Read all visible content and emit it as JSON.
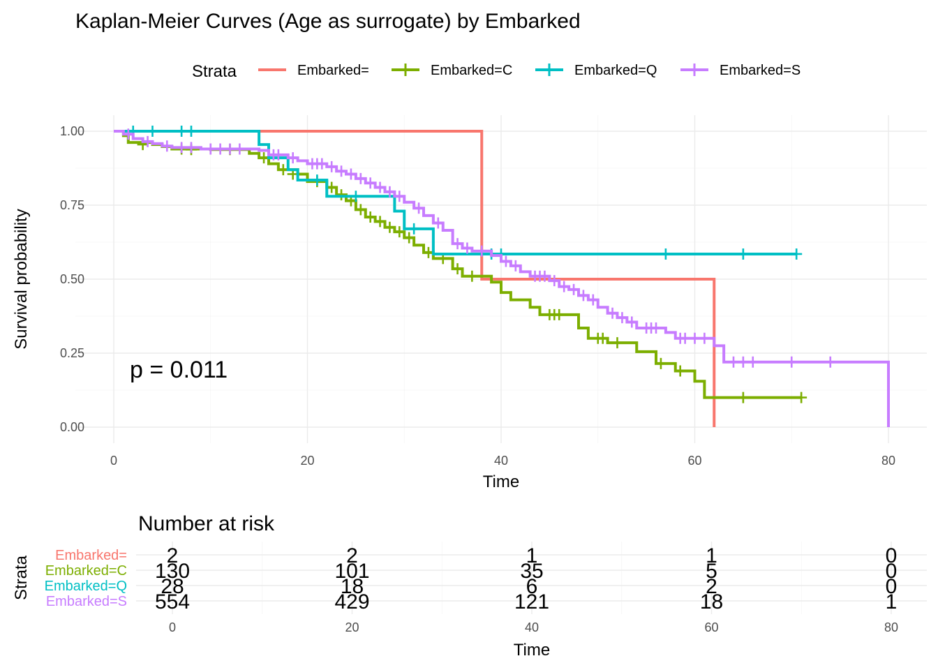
{
  "chart_data": [
    {
      "type": "line",
      "subtype": "kaplan-meier",
      "title": "Kaplan-Meier Curves (Age as surrogate) by Embarked",
      "xlabel": "Time",
      "ylabel": "Survival probability",
      "xlim": [
        0,
        80
      ],
      "ylim": [
        0,
        1
      ],
      "x_ticks": [
        "0",
        "20",
        "40",
        "60",
        "80"
      ],
      "y_ticks": [
        "0.00",
        "0.25",
        "0.50",
        "0.75",
        "1.00"
      ],
      "grid": true,
      "legend": {
        "title": "Strata",
        "position": "top"
      },
      "annotation": "p = 0.011",
      "series": [
        {
          "name": "Embarked=",
          "color": "#F8766D",
          "steps": [
            [
              0,
              1.0
            ],
            [
              38,
              0.5
            ],
            [
              62,
              0.0
            ]
          ],
          "end_x": 62,
          "censored": []
        },
        {
          "name": "Embarked=C",
          "color": "#7CAE00",
          "steps": [
            [
              0,
              1.0
            ],
            [
              1,
              0.985
            ],
            [
              1.5,
              0.962
            ],
            [
              4,
              0.955
            ],
            [
              5,
              0.948
            ],
            [
              6,
              0.94
            ],
            [
              10,
              0.938
            ],
            [
              14,
              0.925
            ],
            [
              15,
              0.91
            ],
            [
              16,
              0.89
            ],
            [
              17,
              0.87
            ],
            [
              19,
              0.855
            ],
            [
              20,
              0.83
            ],
            [
              22,
              0.81
            ],
            [
              23,
              0.785
            ],
            [
              24,
              0.765
            ],
            [
              25,
              0.735
            ],
            [
              26,
              0.71
            ],
            [
              27,
              0.695
            ],
            [
              28,
              0.675
            ],
            [
              29,
              0.66
            ],
            [
              30,
              0.64
            ],
            [
              31,
              0.615
            ],
            [
              32,
              0.59
            ],
            [
              33,
              0.57
            ],
            [
              35,
              0.535
            ],
            [
              36,
              0.51
            ],
            [
              39,
              0.49
            ],
            [
              40,
              0.455
            ],
            [
              41,
              0.43
            ],
            [
              43,
              0.405
            ],
            [
              44,
              0.38
            ],
            [
              48,
              0.335
            ],
            [
              49,
              0.3
            ],
            [
              51,
              0.285
            ],
            [
              54,
              0.255
            ],
            [
              56,
              0.215
            ],
            [
              58,
              0.19
            ],
            [
              60,
              0.155
            ],
            [
              61,
              0.1
            ]
          ],
          "end_x": 71,
          "censored": [
            [
              3,
              0.955
            ],
            [
              7,
              0.94
            ],
            [
              8,
              0.938
            ],
            [
              12,
              0.938
            ],
            [
              15.5,
              0.91
            ],
            [
              17.5,
              0.87
            ],
            [
              18.5,
              0.855
            ],
            [
              21,
              0.83
            ],
            [
              22.5,
              0.81
            ],
            [
              23.5,
              0.785
            ],
            [
              24.5,
              0.765
            ],
            [
              25.5,
              0.735
            ],
            [
              26.5,
              0.71
            ],
            [
              27.5,
              0.695
            ],
            [
              28.5,
              0.675
            ],
            [
              29.5,
              0.66
            ],
            [
              30.5,
              0.64
            ],
            [
              32.5,
              0.59
            ],
            [
              34,
              0.57
            ],
            [
              35.5,
              0.535
            ],
            [
              37,
              0.51
            ],
            [
              45,
              0.38
            ],
            [
              45.5,
              0.38
            ],
            [
              46,
              0.38
            ],
            [
              50,
              0.3
            ],
            [
              50.5,
              0.3
            ],
            [
              52,
              0.285
            ],
            [
              56.5,
              0.215
            ],
            [
              58.5,
              0.19
            ],
            [
              65,
              0.1
            ],
            [
              71,
              0.1
            ]
          ]
        },
        {
          "name": "Embarked=Q",
          "color": "#00BFC4",
          "steps": [
            [
              0,
              1.0
            ],
            [
              15,
              0.955
            ],
            [
              16,
              0.91
            ],
            [
              18,
              0.87
            ],
            [
              19,
              0.835
            ],
            [
              22,
              0.78
            ],
            [
              27,
              0.78
            ],
            [
              29,
              0.73
            ],
            [
              30,
              0.67
            ],
            [
              33,
              0.585
            ]
          ],
          "end_x": 70.5,
          "censored": [
            [
              2,
              1.0
            ],
            [
              4,
              1.0
            ],
            [
              7,
              1.0
            ],
            [
              8,
              1.0
            ],
            [
              21,
              0.835
            ],
            [
              25,
              0.78
            ],
            [
              31,
              0.67
            ],
            [
              39,
              0.585
            ],
            [
              40,
              0.585
            ],
            [
              57,
              0.585
            ],
            [
              65,
              0.585
            ],
            [
              70.5,
              0.585
            ]
          ]
        },
        {
          "name": "Embarked=S",
          "color": "#C77CFF",
          "steps": [
            [
              0,
              1.0
            ],
            [
              1,
              0.99
            ],
            [
              2,
              0.975
            ],
            [
              3,
              0.965
            ],
            [
              4,
              0.958
            ],
            [
              5,
              0.95
            ],
            [
              6,
              0.945
            ],
            [
              9,
              0.94
            ],
            [
              15,
              0.935
            ],
            [
              16,
              0.92
            ],
            [
              18,
              0.91
            ],
            [
              19,
              0.9
            ],
            [
              20,
              0.89
            ],
            [
              22,
              0.88
            ],
            [
              23,
              0.865
            ],
            [
              24,
              0.855
            ],
            [
              25,
              0.84
            ],
            [
              26,
              0.825
            ],
            [
              27,
              0.81
            ],
            [
              28,
              0.795
            ],
            [
              29,
              0.78
            ],
            [
              30,
              0.76
            ],
            [
              31,
              0.74
            ],
            [
              32,
              0.715
            ],
            [
              33,
              0.69
            ],
            [
              34,
              0.665
            ],
            [
              35,
              0.62
            ],
            [
              36,
              0.605
            ],
            [
              37,
              0.595
            ],
            [
              39,
              0.58
            ],
            [
              40,
              0.56
            ],
            [
              41,
              0.545
            ],
            [
              42,
              0.525
            ],
            [
              43,
              0.51
            ],
            [
              45,
              0.495
            ],
            [
              46,
              0.475
            ],
            [
              47,
              0.465
            ],
            [
              48,
              0.445
            ],
            [
              49,
              0.43
            ],
            [
              50,
              0.405
            ],
            [
              51,
              0.385
            ],
            [
              52,
              0.37
            ],
            [
              53,
              0.355
            ],
            [
              54,
              0.335
            ],
            [
              57,
              0.32
            ],
            [
              58,
              0.3
            ],
            [
              62,
              0.275
            ],
            [
              63,
              0.22
            ],
            [
              80,
              0.0
            ]
          ],
          "end_x": 80,
          "censored": [
            [
              1.5,
              0.99
            ],
            [
              3.5,
              0.965
            ],
            [
              5.5,
              0.95
            ],
            [
              7,
              0.945
            ],
            [
              8,
              0.945
            ],
            [
              10,
              0.94
            ],
            [
              11,
              0.94
            ],
            [
              12,
              0.94
            ],
            [
              13,
              0.94
            ],
            [
              16.5,
              0.92
            ],
            [
              17,
              0.92
            ],
            [
              18.5,
              0.91
            ],
            [
              20.5,
              0.89
            ],
            [
              21,
              0.89
            ],
            [
              21.5,
              0.89
            ],
            [
              22.5,
              0.88
            ],
            [
              23.5,
              0.865
            ],
            [
              24.5,
              0.855
            ],
            [
              25.5,
              0.84
            ],
            [
              26.5,
              0.825
            ],
            [
              27.5,
              0.81
            ],
            [
              28.5,
              0.795
            ],
            [
              29.5,
              0.78
            ],
            [
              31.5,
              0.74
            ],
            [
              33.5,
              0.69
            ],
            [
              35.5,
              0.62
            ],
            [
              36.5,
              0.605
            ],
            [
              38,
              0.595
            ],
            [
              40.5,
              0.56
            ],
            [
              41.5,
              0.545
            ],
            [
              43.5,
              0.51
            ],
            [
              44,
              0.51
            ],
            [
              44.5,
              0.51
            ],
            [
              45.5,
              0.495
            ],
            [
              46.5,
              0.475
            ],
            [
              47.5,
              0.465
            ],
            [
              48.5,
              0.445
            ],
            [
              49.5,
              0.43
            ],
            [
              51.5,
              0.385
            ],
            [
              52.5,
              0.37
            ],
            [
              53.5,
              0.355
            ],
            [
              55,
              0.335
            ],
            [
              55.5,
              0.335
            ],
            [
              56,
              0.335
            ],
            [
              58.5,
              0.3
            ],
            [
              59,
              0.3
            ],
            [
              60,
              0.3
            ],
            [
              61,
              0.3
            ],
            [
              64,
              0.22
            ],
            [
              65,
              0.22
            ],
            [
              66,
              0.22
            ],
            [
              70,
              0.22
            ],
            [
              74,
              0.22
            ]
          ]
        }
      ]
    },
    {
      "type": "table",
      "title": "Number at risk",
      "xlabel": "Time",
      "ylabel": "Strata",
      "xlim": [
        0,
        80
      ],
      "times": [
        "0",
        "20",
        "40",
        "60",
        "80"
      ],
      "rows": [
        {
          "name": "Embarked=",
          "color": "#F8766D",
          "values": [
            "2",
            "2",
            "1",
            "1",
            "0"
          ]
        },
        {
          "name": "Embarked=C",
          "color": "#7CAE00",
          "values": [
            "130",
            "101",
            "35",
            "5",
            "0"
          ]
        },
        {
          "name": "Embarked=Q",
          "color": "#00BFC4",
          "values": [
            "28",
            "18",
            "6",
            "2",
            "0"
          ]
        },
        {
          "name": "Embarked=S",
          "color": "#C77CFF",
          "values": [
            "554",
            "429",
            "121",
            "18",
            "1"
          ]
        }
      ]
    }
  ]
}
